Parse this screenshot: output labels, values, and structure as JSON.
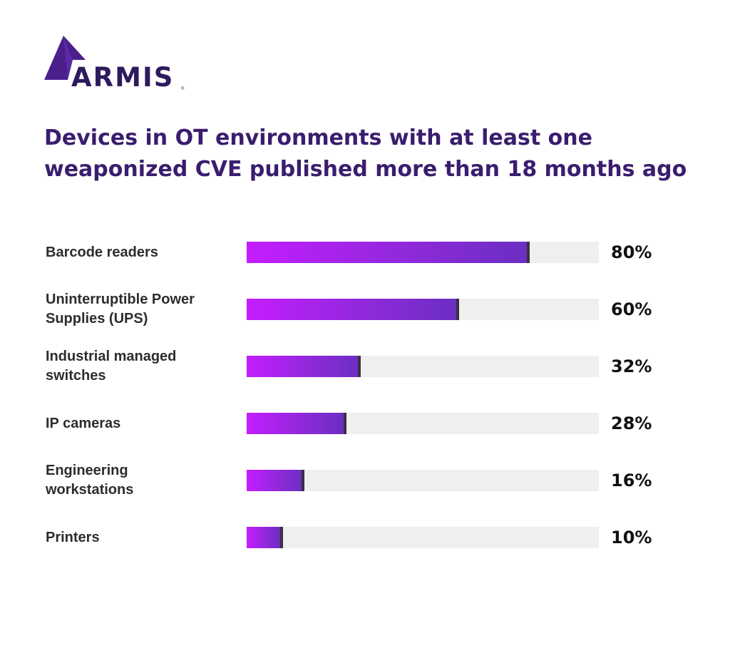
{
  "brand": {
    "name": "ARMIS",
    "registered_mark": "®",
    "color": "#4a1f8c"
  },
  "chart_data": {
    "type": "bar",
    "orientation": "horizontal",
    "title_lines": [
      "Devices in OT environments with at least one",
      "weaponized CVE published more than 18 months ago"
    ],
    "categories": [
      [
        "Barcode readers"
      ],
      [
        "Uninterruptible Power",
        "Supplies (UPS)"
      ],
      [
        "Industrial managed",
        "switches"
      ],
      [
        "IP cameras"
      ],
      [
        "Engineering",
        "workstations"
      ],
      [
        "Printers"
      ]
    ],
    "values": [
      80,
      60,
      32,
      28,
      16,
      10
    ],
    "value_labels": [
      "80%",
      "60%",
      "32%",
      "28%",
      "16%",
      "10%"
    ],
    "xlim": [
      0,
      100
    ],
    "grid": false,
    "legend": "none",
    "colors": {
      "bar_start": "#c41dff",
      "bar_end": "#6a2ec2",
      "track": "#efefef",
      "bar_end_cap": "#3a3040"
    }
  }
}
